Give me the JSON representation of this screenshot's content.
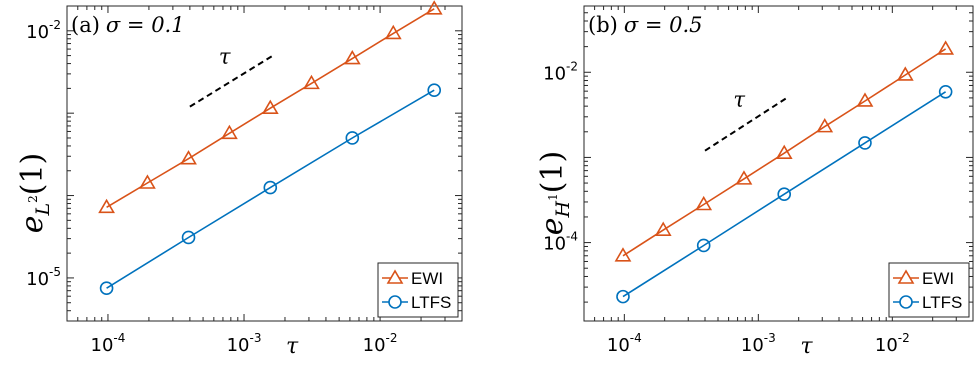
{
  "chart_data": [
    {
      "type": "line",
      "title": "(a) σ = 0.1",
      "panel": "(a)",
      "param": "σ = 0.1",
      "xlabel": "τ",
      "ylabel": "e",
      "ylabel_sub": "L",
      "ylabel_sup": "2",
      "ylabel_arg": "(1)",
      "xscale": "log",
      "yscale": "log",
      "xlim": [
        5e-05,
        0.04
      ],
      "ylim": [
        3e-06,
        0.02
      ],
      "xticks": [
        {
          "base": "10",
          "exp": "-4",
          "value": 0.0001
        },
        {
          "base": "10",
          "exp": "-3",
          "value": 0.001
        },
        {
          "base": "10",
          "exp": "-2",
          "value": 0.01
        }
      ],
      "yticks": [
        {
          "base": "10",
          "exp": "-5",
          "value": 1e-05
        },
        {
          "base": "10",
          "exp": "-2",
          "value": 0.01
        }
      ],
      "slope_label": "τ",
      "slope_line": {
        "x": [
          0.0004,
          0.0016
        ],
        "y": [
          0.0012,
          0.0049
        ]
      },
      "legend_position": "bottom-right",
      "series": [
        {
          "name": "EWI",
          "color": "#d95319",
          "marker": "triangle",
          "x": [
            9.77e-05,
            0.000195,
            0.000391,
            0.000781,
            0.00156,
            0.00313,
            0.00625,
            0.0125,
            0.025
          ],
          "y": [
            7.2e-05,
            0.000142,
            0.00028,
            0.00057,
            0.00115,
            0.0023,
            0.0046,
            0.0093,
            0.0185
          ]
        },
        {
          "name": "LTFS",
          "color": "#0072bd",
          "marker": "circle",
          "x": [
            9.77e-05,
            0.000391,
            0.00156,
            0.00625,
            0.025
          ],
          "y": [
            7.5e-06,
            3.1e-05,
            0.000125,
            0.0005,
            0.0019
          ]
        }
      ]
    },
    {
      "type": "line",
      "title": "(b) σ = 0.5",
      "panel": "(b)",
      "param": "σ = 0.5",
      "xlabel": "τ",
      "ylabel": "e",
      "ylabel_sub": "H",
      "ylabel_sup": "1",
      "ylabel_arg": "(1)",
      "xscale": "log",
      "yscale": "log",
      "xlim": [
        5e-05,
        0.04
      ],
      "ylim": [
        1.2e-05,
        0.06
      ],
      "xticks": [
        {
          "base": "10",
          "exp": "-4",
          "value": 0.0001
        },
        {
          "base": "10",
          "exp": "-3",
          "value": 0.001
        },
        {
          "base": "10",
          "exp": "-2",
          "value": 0.01
        }
      ],
      "yticks": [
        {
          "base": "10",
          "exp": "-4",
          "value": 0.0001
        },
        {
          "base": "10",
          "exp": "-2",
          "value": 0.01
        }
      ],
      "slope_label": "τ",
      "slope_line": {
        "x": [
          0.0004,
          0.0016
        ],
        "y": [
          0.0012,
          0.0049
        ]
      },
      "legend_position": "bottom-right",
      "series": [
        {
          "name": "EWI",
          "color": "#d95319",
          "marker": "triangle",
          "x": [
            9.77e-05,
            0.000195,
            0.000391,
            0.000781,
            0.00156,
            0.00313,
            0.00625,
            0.0125,
            0.025
          ],
          "y": [
            7e-05,
            0.00014,
            0.00028,
            0.00056,
            0.00112,
            0.0023,
            0.0046,
            0.0093,
            0.0188
          ]
        },
        {
          "name": "LTFS",
          "color": "#0072bd",
          "marker": "circle",
          "x": [
            9.77e-05,
            0.000391,
            0.00156,
            0.00625,
            0.025
          ],
          "y": [
            2.32e-05,
            9.25e-05,
            0.00037,
            0.00148,
            0.0059
          ]
        }
      ]
    }
  ]
}
